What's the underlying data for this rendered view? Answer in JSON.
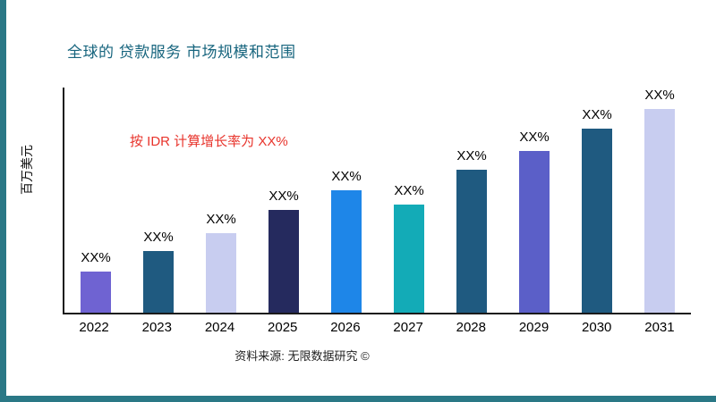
{
  "source": "资料来源: 无限数据研究 ©",
  "colors": {
    "frame": "#2A7886",
    "title": "#17657E",
    "annotation": "#E8342C",
    "axis": "#1A1A1A"
  },
  "chart_data": {
    "type": "bar",
    "title": "全球的 贷款服务 市场规模和范围",
    "annotation": "按 IDR 计算增长率为 XX%",
    "ylabel": "百万美元",
    "xlabel": "",
    "categories": [
      "2022",
      "2023",
      "2024",
      "2025",
      "2026",
      "2027",
      "2028",
      "2029",
      "2030",
      "2031"
    ],
    "values": [
      20,
      30,
      39,
      50,
      60,
      53,
      70,
      79,
      90,
      100
    ],
    "bar_labels": [
      "XX%",
      "XX%",
      "XX%",
      "XX%",
      "XX%",
      "XX%",
      "XX%",
      "XX%",
      "XX%",
      "XX%"
    ],
    "bar_colors": [
      "#6F63D2",
      "#1F5A80",
      "#C8CDF0",
      "#252A5E",
      "#1E86E8",
      "#13ABB7",
      "#1F5A80",
      "#5B5FC8",
      "#1F5A80",
      "#C8CDF0"
    ],
    "ylim": [
      0,
      110
    ],
    "grid": false,
    "legend": false,
    "values_note": "relative bar heights; y-axis shows no numeric tick labels"
  }
}
